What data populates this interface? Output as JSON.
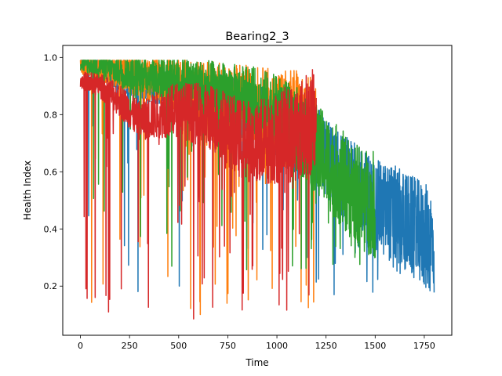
{
  "chart_data": {
    "type": "line",
    "title": "Bearing2_3",
    "xlabel": "Time",
    "ylabel": "Health Index",
    "xlim": [
      -90,
      1890
    ],
    "ylim": [
      0.028,
      1.042
    ],
    "xticks": [
      0,
      250,
      500,
      750,
      1000,
      1250,
      1500,
      1750
    ],
    "xtick_labels": [
      "0",
      "250",
      "500",
      "750",
      "1000",
      "1250",
      "1500",
      "1750"
    ],
    "yticks": [
      0.2,
      0.4,
      0.6,
      0.8,
      1.0
    ],
    "ytick_labels": [
      "0.2",
      "0.4",
      "0.6",
      "0.8",
      "1.0"
    ],
    "grid": false,
    "legend": "none",
    "series": [
      {
        "color": "#1f77b4",
        "x_range": [
          0,
          1800
        ],
        "anchors": [
          [
            0,
            0.98
          ],
          [
            100,
            0.96
          ],
          [
            200,
            0.93
          ],
          [
            300,
            0.91
          ],
          [
            400,
            0.9
          ],
          [
            500,
            0.88
          ],
          [
            600,
            0.86
          ],
          [
            700,
            0.85
          ],
          [
            800,
            0.83
          ],
          [
            900,
            0.8
          ],
          [
            1000,
            0.75
          ],
          [
            1100,
            0.72
          ],
          [
            1200,
            0.7
          ],
          [
            1250,
            0.65
          ],
          [
            1300,
            0.6
          ],
          [
            1400,
            0.55
          ],
          [
            1500,
            0.48
          ],
          [
            1600,
            0.45
          ],
          [
            1700,
            0.4
          ],
          [
            1800,
            0.35
          ]
        ],
        "min_value": 0.15,
        "max_value": 0.99
      },
      {
        "color": "#ff7f0e",
        "x_range": [
          0,
          1200
        ],
        "anchors": [
          [
            0,
            0.97
          ],
          [
            100,
            0.96
          ],
          [
            200,
            0.95
          ],
          [
            300,
            0.93
          ],
          [
            400,
            0.92
          ],
          [
            500,
            0.9
          ],
          [
            600,
            0.88
          ],
          [
            700,
            0.86
          ],
          [
            800,
            0.84
          ],
          [
            900,
            0.82
          ],
          [
            1000,
            0.8
          ],
          [
            1100,
            0.78
          ],
          [
            1200,
            0.75
          ]
        ],
        "min_value": 0.1,
        "max_value": 0.99
      },
      {
        "color": "#2ca02c",
        "x_range": [
          0,
          1500
        ],
        "anchors": [
          [
            0,
            0.98
          ],
          [
            100,
            0.97
          ],
          [
            200,
            0.95
          ],
          [
            300,
            0.94
          ],
          [
            400,
            0.93
          ],
          [
            500,
            0.92
          ],
          [
            600,
            0.9
          ],
          [
            700,
            0.88
          ],
          [
            800,
            0.86
          ],
          [
            900,
            0.84
          ],
          [
            1000,
            0.8
          ],
          [
            1100,
            0.75
          ],
          [
            1200,
            0.68
          ],
          [
            1300,
            0.6
          ],
          [
            1400,
            0.52
          ],
          [
            1500,
            0.48
          ]
        ],
        "min_value": 0.25,
        "max_value": 0.99
      },
      {
        "color": "#d62728",
        "x_range": [
          0,
          1200
        ],
        "anchors": [
          [
            0,
            0.92
          ],
          [
            100,
            0.9
          ],
          [
            200,
            0.85
          ],
          [
            300,
            0.78
          ],
          [
            400,
            0.8
          ],
          [
            500,
            0.82
          ],
          [
            600,
            0.8
          ],
          [
            700,
            0.78
          ],
          [
            800,
            0.72
          ],
          [
            900,
            0.7
          ],
          [
            1000,
            0.72
          ],
          [
            1100,
            0.74
          ],
          [
            1200,
            0.78
          ]
        ],
        "min_value": 0.08,
        "max_value": 0.99
      }
    ]
  }
}
